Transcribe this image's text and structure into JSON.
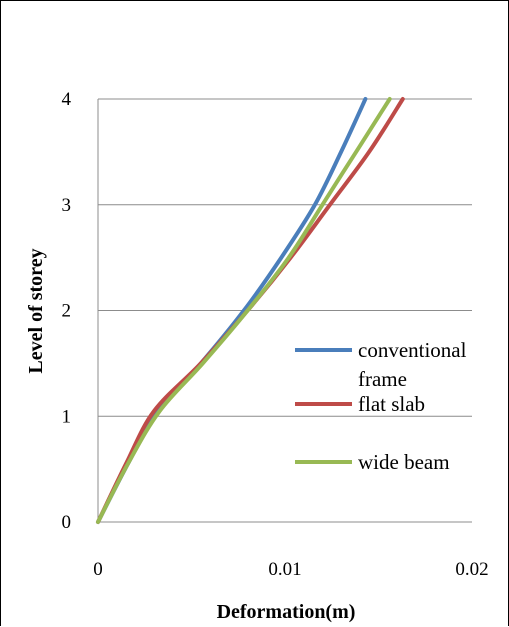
{
  "chart_data": {
    "type": "line",
    "title": "",
    "xlabel": "Deformation(m)",
    "ylabel": "Level of storey",
    "xlim": [
      0,
      0.02
    ],
    "ylim": [
      0,
      4
    ],
    "x_ticks": [
      "0",
      "0.01",
      "0.02"
    ],
    "y_ticks": [
      "0",
      "1",
      "2",
      "3",
      "4"
    ],
    "grid": "horizontal",
    "legend_position": "right-center",
    "series": [
      {
        "name": "conventional frame",
        "name_lines": [
          "conventional",
          "frame"
        ],
        "color": "#4a7ebb",
        "x": [
          0,
          0.0016,
          0.0032,
          0.0055,
          0.0078,
          0.0098,
          0.0116,
          0.013,
          0.0143
        ],
        "y": [
          0,
          0.55,
          1.05,
          1.5,
          2.0,
          2.5,
          3.0,
          3.5,
          4.0
        ]
      },
      {
        "name": "flat slab",
        "name_lines": [
          "flat slab"
        ],
        "color": "#be4b48",
        "x": [
          0,
          0.0015,
          0.003,
          0.0055,
          0.008,
          0.0103,
          0.0124,
          0.0145,
          0.0163
        ],
        "y": [
          0,
          0.55,
          1.05,
          1.5,
          2.0,
          2.5,
          3.0,
          3.5,
          4.0
        ]
      },
      {
        "name": "wide beam",
        "name_lines": [
          "wide beam"
        ],
        "color": "#98b954",
        "x": [
          0,
          0.0016,
          0.0033,
          0.0056,
          0.008,
          0.0102,
          0.012,
          0.0138,
          0.0156
        ],
        "y": [
          0,
          0.55,
          1.05,
          1.5,
          2.0,
          2.5,
          3.0,
          3.5,
          4.0
        ]
      }
    ]
  }
}
